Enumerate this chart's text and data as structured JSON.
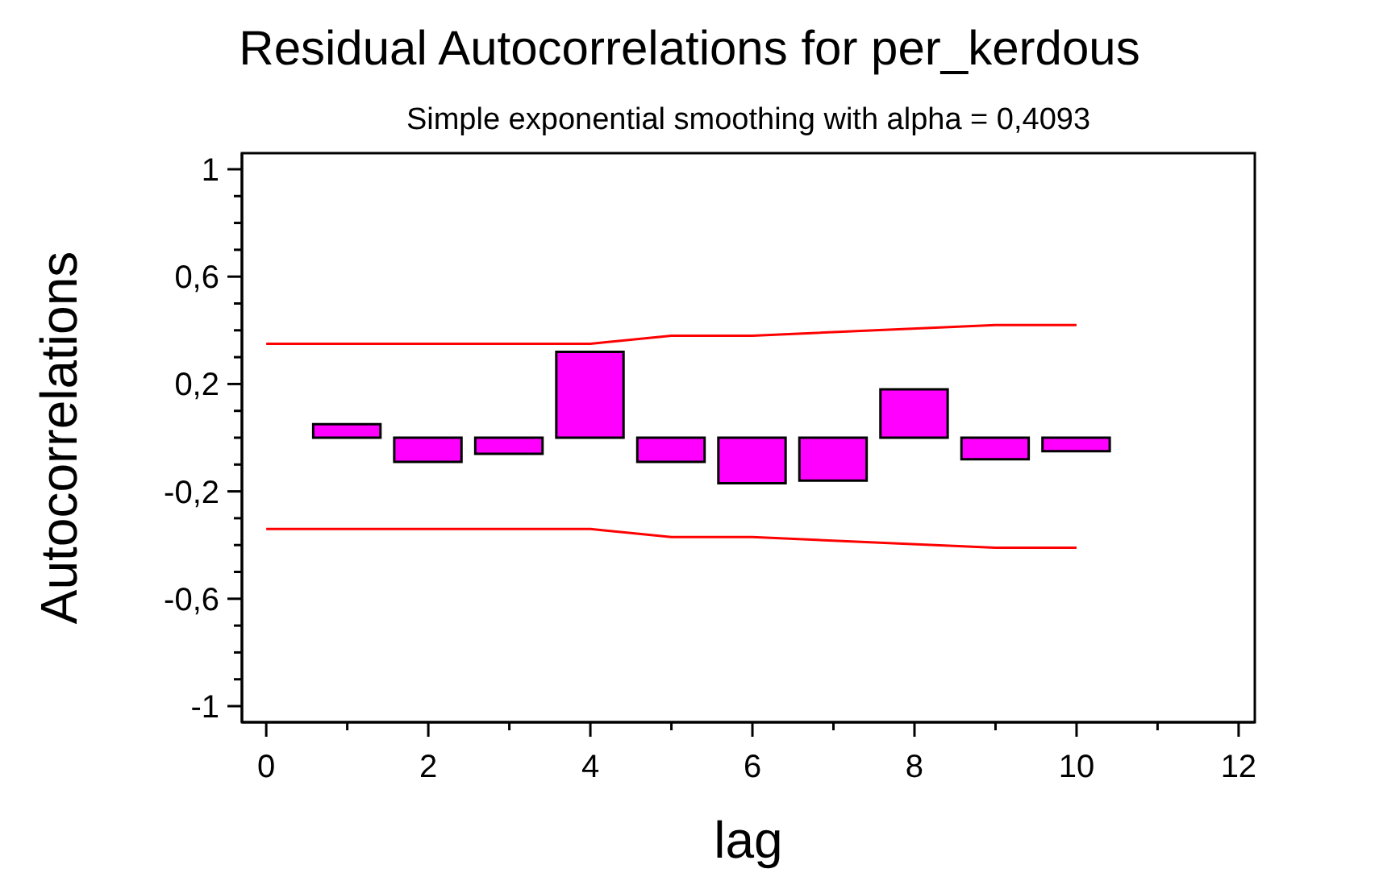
{
  "chart_data": {
    "type": "bar",
    "title": "Residual Autocorrelations for per_kerdous",
    "subtitle": "Simple exponential smoothing with alpha = 0,4093",
    "xlabel": "lag",
    "ylabel": "Autocorrelations",
    "x": [
      1,
      2,
      3,
      4,
      5,
      6,
      7,
      8,
      9,
      10
    ],
    "series": [
      {
        "color": "#ff00ff",
        "values": [
          0.05,
          -0.09,
          -0.06,
          0.32,
          -0.09,
          -0.17,
          -0.16,
          0.18,
          -0.08,
          -0.05
        ]
      },
      {
        "type": "line",
        "color": "#ff0000",
        "x": [
          0,
          4,
          5,
          6,
          9,
          10
        ],
        "values": [
          0.35,
          0.35,
          0.38,
          0.38,
          0.42,
          0.42
        ]
      },
      {
        "type": "line",
        "color": "#ff0000",
        "x": [
          0,
          4,
          5,
          6,
          9,
          10
        ],
        "values": [
          -0.34,
          -0.34,
          -0.37,
          -0.37,
          -0.41,
          -0.41
        ]
      }
    ],
    "xlim": [
      -0.3,
      12.2
    ],
    "xticks": [
      0,
      {
        "value": 1,
        "label": null
      },
      2,
      {
        "value": 3,
        "label": null
      },
      4,
      {
        "value": 5,
        "label": null
      },
      6,
      {
        "value": 7,
        "label": null
      },
      8,
      {
        "value": 9,
        "label": null
      },
      10,
      {
        "value": 11,
        "label": null
      },
      12
    ],
    "ylim": [
      -1.06,
      1.06
    ],
    "yticks": [
      -1,
      {
        "value": -0.9,
        "label": null
      },
      {
        "value": -0.8,
        "label": null
      },
      {
        "value": -0.7,
        "label": null
      },
      {
        "value": -0.6,
        "label": "-0,6"
      },
      {
        "value": -0.5,
        "label": null
      },
      {
        "value": -0.4,
        "label": null
      },
      {
        "value": -0.3,
        "label": null
      },
      {
        "value": -0.2,
        "label": "-0,2"
      },
      {
        "value": -0.1,
        "label": null
      },
      {
        "value": 0,
        "label": null
      },
      {
        "value": 0.1,
        "label": null
      },
      {
        "value": 0.2,
        "label": "0,2"
      },
      {
        "value": 0.3,
        "label": null
      },
      {
        "value": 0.4,
        "label": null
      },
      {
        "value": 0.5,
        "label": null
      },
      {
        "value": 0.6,
        "label": "0,6"
      },
      {
        "value": 0.7,
        "label": null
      },
      {
        "value": 0.8,
        "label": null
      },
      {
        "value": 0.9,
        "label": null
      },
      1
    ],
    "grid": false,
    "legend": false,
    "marker": "none",
    "line_style": "solid"
  }
}
